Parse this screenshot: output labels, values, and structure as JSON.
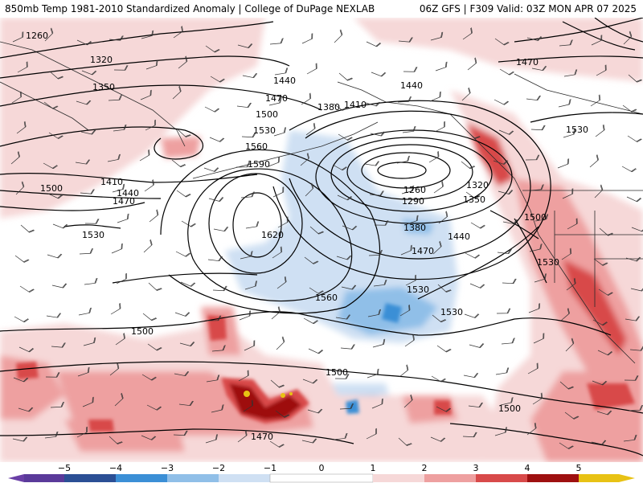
{
  "header": {
    "left": "850mb Temp 1981-2010 Standardized Anomaly | College of DuPage NEXLAB",
    "right": "06Z GFS | F309 Valid: 03Z MON APR 07 2025"
  },
  "colors": {
    "anom_neg5": "#4b2a8f",
    "anom_neg4": "#2b4f95",
    "anom_neg3": "#3b8fd6",
    "anom_neg2": "#90bfe8",
    "anom_neg1": "#cfe0f3",
    "anom_zero": "#ffffff",
    "anom_pos1": "#f6d8d8",
    "anom_pos2": "#eea0a0",
    "anom_pos3": "#d84a4a",
    "anom_pos4": "#9e1010",
    "anom_pos5": "#e8c214",
    "contour": "#000000",
    "coast": "#2a2a2a"
  },
  "contour_labels": [
    "1260",
    "1320",
    "1350",
    "1410",
    "1440",
    "1470",
    "1500",
    "1530",
    "1560",
    "1590",
    "1620",
    "1440",
    "1470",
    "1500",
    "1530",
    "1560",
    "1380",
    "1410",
    "1440",
    "1260",
    "1290",
    "1320",
    "1350",
    "1380",
    "1440",
    "1470",
    "1470",
    "1530",
    "1500",
    "1530",
    "1530",
    "1530",
    "1500",
    "1500",
    "1470",
    "1500"
  ],
  "legend": {
    "ticks": [
      "−5",
      "−4",
      "−3",
      "−2",
      "−1",
      "0",
      "1",
      "2",
      "3",
      "4",
      "5"
    ]
  }
}
